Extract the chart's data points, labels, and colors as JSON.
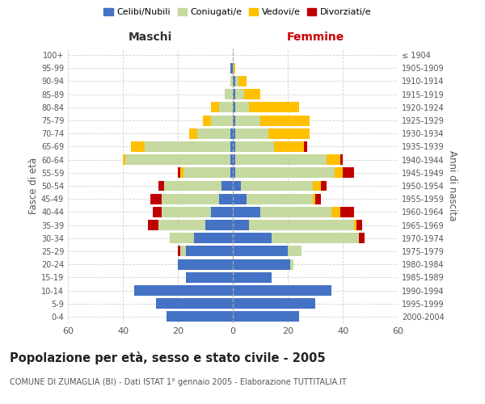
{
  "age_groups": [
    "0-4",
    "5-9",
    "10-14",
    "15-19",
    "20-24",
    "25-29",
    "30-34",
    "35-39",
    "40-44",
    "45-49",
    "50-54",
    "55-59",
    "60-64",
    "65-69",
    "70-74",
    "75-79",
    "80-84",
    "85-89",
    "90-94",
    "95-99",
    "100+"
  ],
  "birth_years": [
    "2000-2004",
    "1995-1999",
    "1990-1994",
    "1985-1989",
    "1980-1984",
    "1975-1979",
    "1970-1974",
    "1965-1969",
    "1960-1964",
    "1955-1959",
    "1950-1954",
    "1945-1949",
    "1940-1944",
    "1935-1939",
    "1930-1934",
    "1925-1929",
    "1920-1924",
    "1915-1919",
    "1910-1914",
    "1905-1909",
    "≤ 1904"
  ],
  "colors": {
    "celibi": "#4472c4",
    "coniugati": "#c5d9a0",
    "vedovi": "#ffc000",
    "divorziati": "#c00000"
  },
  "maschi": {
    "celibi": [
      24,
      28,
      36,
      17,
      20,
      17,
      14,
      10,
      8,
      5,
      4,
      1,
      1,
      1,
      1,
      0,
      0,
      0,
      0,
      1,
      0
    ],
    "coniugati": [
      0,
      0,
      0,
      0,
      0,
      2,
      9,
      17,
      18,
      21,
      21,
      17,
      38,
      31,
      12,
      8,
      5,
      3,
      1,
      0,
      0
    ],
    "vedovi": [
      0,
      0,
      0,
      0,
      0,
      0,
      0,
      0,
      0,
      0,
      0,
      1,
      1,
      5,
      3,
      3,
      3,
      0,
      0,
      0,
      0
    ],
    "divorziati": [
      0,
      0,
      0,
      0,
      0,
      1,
      0,
      4,
      3,
      4,
      2,
      1,
      0,
      0,
      0,
      0,
      0,
      0,
      0,
      0,
      0
    ]
  },
  "femmine": {
    "celibi": [
      24,
      30,
      36,
      14,
      21,
      20,
      14,
      6,
      10,
      5,
      3,
      1,
      1,
      1,
      1,
      1,
      1,
      1,
      1,
      0,
      0
    ],
    "coniugati": [
      0,
      0,
      0,
      0,
      1,
      5,
      32,
      38,
      26,
      24,
      26,
      36,
      33,
      14,
      12,
      9,
      5,
      3,
      1,
      0,
      0
    ],
    "vedovi": [
      0,
      0,
      0,
      0,
      0,
      0,
      0,
      1,
      3,
      1,
      3,
      3,
      5,
      11,
      15,
      18,
      18,
      6,
      3,
      1,
      0
    ],
    "divorziati": [
      0,
      0,
      0,
      0,
      0,
      0,
      2,
      2,
      5,
      2,
      2,
      4,
      1,
      1,
      0,
      0,
      0,
      0,
      0,
      0,
      0
    ]
  },
  "title": "Popolazione per età, sesso e stato civile - 2005",
  "subtitle": "COMUNE DI ZUMAGLIA (BI) - Dati ISTAT 1° gennaio 2005 - Elaborazione TUTTITALIA.IT",
  "xlabel_left": "Maschi",
  "xlabel_right": "Femmine",
  "ylabel_left": "Fasce di età",
  "ylabel_right": "Anni di nascita",
  "xlim": 60,
  "legend_labels": [
    "Celibi/Nubili",
    "Coniugati/e",
    "Vedovi/e",
    "Divorziati/e"
  ],
  "background_color": "#ffffff",
  "grid_color": "#cccccc"
}
